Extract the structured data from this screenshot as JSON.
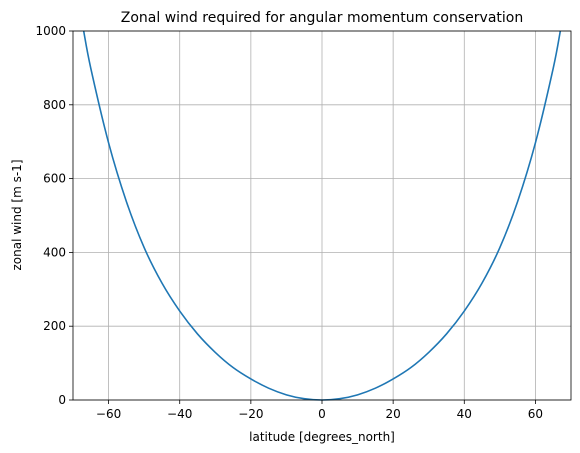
{
  "chart_data": {
    "type": "line",
    "title": "Zonal wind required for angular momentum conservation",
    "xlabel": "latitude [degrees_north]",
    "ylabel": "zonal wind [m s-1]",
    "xlim": [
      -70,
      70
    ],
    "ylim": [
      0,
      1000
    ],
    "xticks": [
      -60,
      -40,
      -20,
      0,
      20,
      40,
      60
    ],
    "yticks": [
      0,
      200,
      400,
      600,
      800,
      1000
    ],
    "xtick_labels": [
      "−60",
      "−40",
      "−20",
      "0",
      "20",
      "40",
      "60"
    ],
    "ytick_labels": [
      "0",
      "200",
      "400",
      "600",
      "800",
      "1000"
    ],
    "grid": true,
    "series": [
      {
        "color": "#1f77b4",
        "x": [
          -67,
          -65,
          -60,
          -55,
          -50,
          -45,
          -40,
          -35,
          -30,
          -25,
          -20,
          -15,
          -10,
          -5,
          0,
          5,
          10,
          15,
          20,
          25,
          30,
          35,
          40,
          45,
          50,
          55,
          60,
          65,
          67
        ],
        "y": [
          1000,
          899,
          697,
          538,
          413,
          317,
          241,
          179,
          129,
          88,
          57,
          32,
          14,
          3.5,
          0,
          3.5,
          14,
          32,
          57,
          88,
          129,
          179,
          241,
          317,
          413,
          538,
          697,
          899,
          1000
        ]
      }
    ]
  }
}
